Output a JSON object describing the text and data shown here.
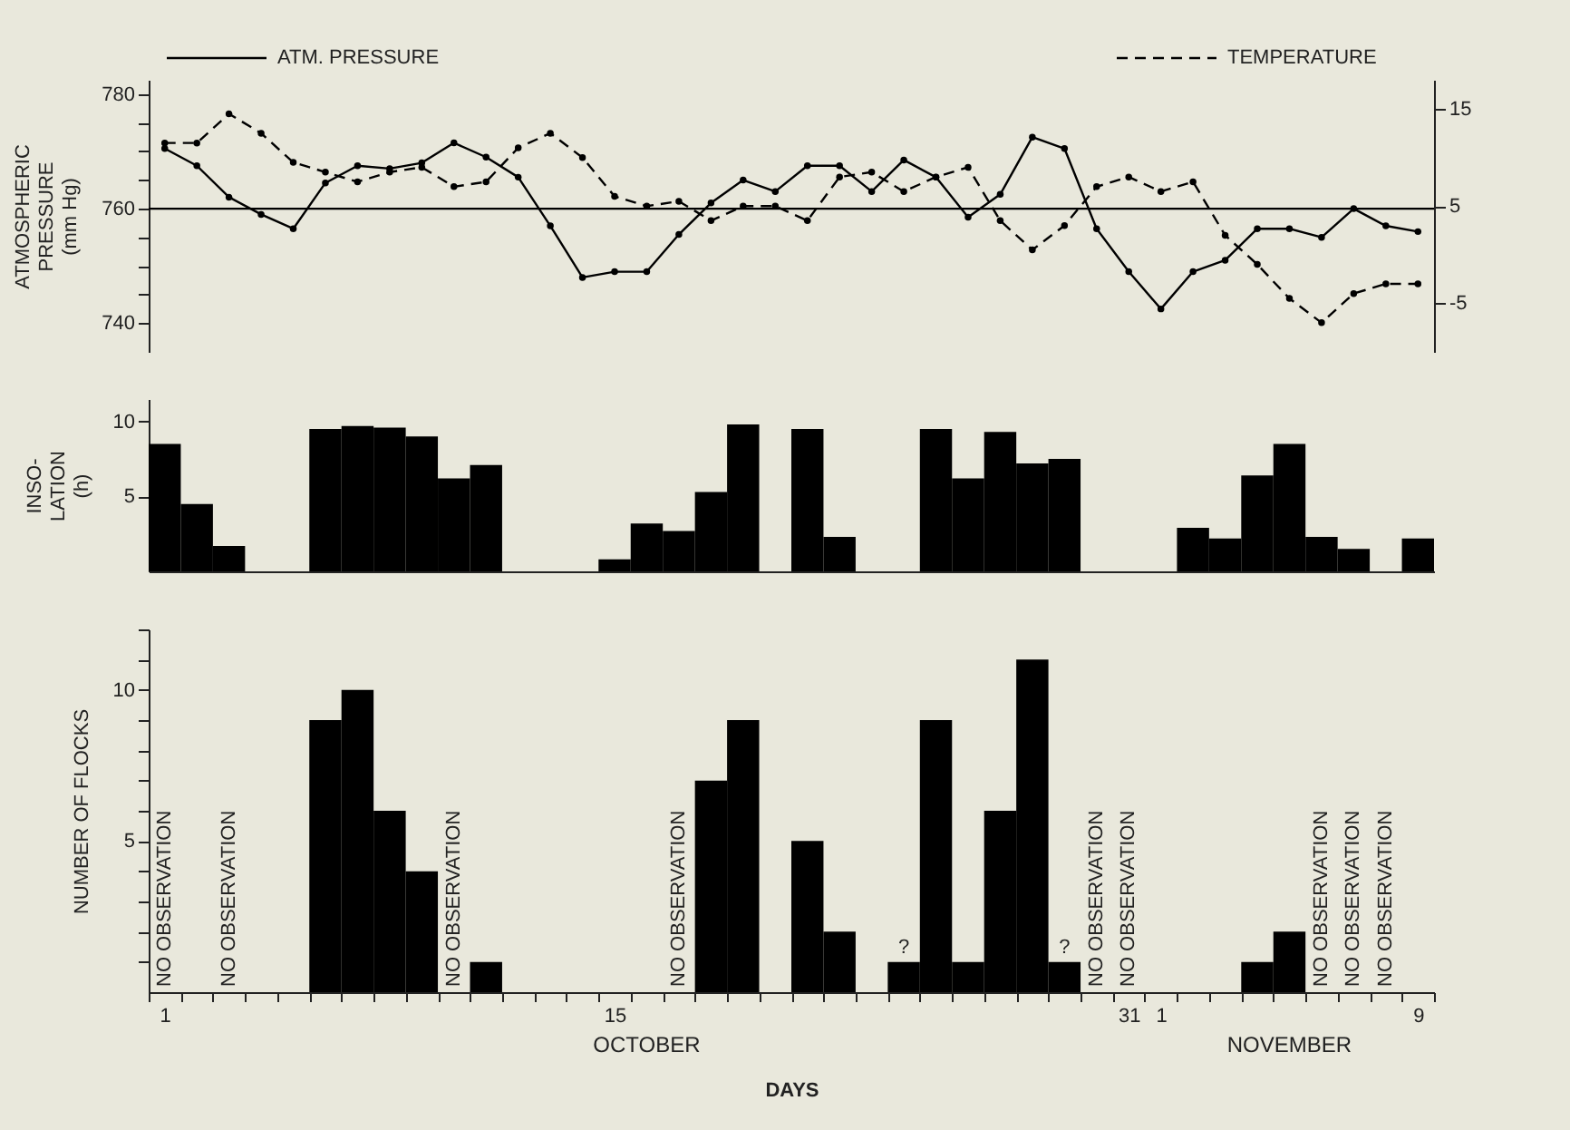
{
  "chart_data": [
    {
      "type": "line",
      "ylabel": "ATMOSPHERIC\nPRESSURE\n(mm Hg)",
      "legend": "top",
      "marker": "circle",
      "tick_labels": "y",
      "categories": [
        "1",
        null,
        null,
        null,
        null,
        null,
        null,
        null,
        null,
        null,
        null,
        null,
        null,
        null,
        "15",
        null,
        null,
        null,
        null,
        null,
        null,
        null,
        null,
        null,
        null,
        null,
        null,
        null,
        null,
        null,
        "31",
        "1",
        null,
        null,
        null,
        null,
        null,
        null,
        null,
        "9"
      ],
      "ylim": [
        735,
        782.5
      ],
      "yticks": [
        {
          "value": 740,
          "label": "740"
        },
        {
          "value": 745,
          "label": null
        },
        {
          "value": 750,
          "label": null
        },
        {
          "value": 755,
          "label": null
        },
        {
          "value": 760,
          "label": "760"
        },
        {
          "value": 765,
          "label": null
        },
        {
          "value": 770,
          "label": null
        },
        {
          "value": 775,
          "label": null
        },
        {
          "value": 780,
          "label": "780"
        }
      ],
      "y2lim": [
        -10,
        18
      ],
      "y2ticks": [
        -5,
        5,
        15
      ],
      "ref_lines": [
        {
          "axis": "y",
          "value": 760,
          "color": "#000000"
        }
      ],
      "series": [
        {
          "name": "ATM. PRESSURE",
          "color": "#000000",
          "line_style": "solid",
          "values": [
            770.5,
            767.5,
            762,
            759,
            756.5,
            764.5,
            767.5,
            767,
            768,
            771.5,
            769,
            765.5,
            757,
            748,
            749,
            749,
            755.5,
            761,
            765,
            763,
            767.5,
            767.5,
            763,
            768.5,
            765.5,
            758.5,
            762.5,
            772.5,
            770.5,
            756.5,
            749,
            742.5,
            749,
            751,
            756.5,
            756.5,
            755,
            760,
            757,
            756
          ]
        },
        {
          "name": "TEMPERATURE",
          "color": "#000000",
          "line_style": "dashed",
          "axis": "y2",
          "values": [
            11.5,
            11.5,
            14.5,
            12.5,
            9.5,
            8.5,
            7.5,
            8.5,
            9,
            7,
            7.5,
            11,
            12.5,
            10,
            6,
            5,
            5.5,
            3.5,
            5,
            5,
            3.5,
            8,
            8.5,
            6.5,
            8,
            9,
            3.5,
            0.5,
            3,
            7,
            8,
            6.5,
            7.5,
            2,
            -1,
            -4.5,
            -7,
            -4,
            -3,
            -3
          ]
        }
      ]
    },
    {
      "type": "bar",
      "ylabel": "INSO-\nLATION\n(h)",
      "tick_labels": "y",
      "color": "#000000",
      "categories": [
        "1",
        null,
        null,
        null,
        null,
        null,
        null,
        null,
        null,
        null,
        null,
        null,
        null,
        null,
        "15",
        null,
        null,
        null,
        null,
        null,
        null,
        null,
        null,
        null,
        null,
        null,
        null,
        null,
        null,
        null,
        "31",
        "1",
        null,
        null,
        null,
        null,
        null,
        null,
        null,
        "9"
      ],
      "ylim": [
        0,
        11.5
      ],
      "yticks": [
        5,
        10
      ],
      "values": [
        8.5,
        4.5,
        1.7,
        0,
        0,
        9.5,
        9.7,
        9.6,
        9,
        6.2,
        7.1,
        0,
        0,
        0,
        0.8,
        3.2,
        2.7,
        5.3,
        9.8,
        0,
        9.5,
        2.3,
        0,
        0,
        9.5,
        6.2,
        9.3,
        7.2,
        7.5,
        0,
        0,
        0,
        2.9,
        2.2,
        6.4,
        8.5,
        2.3,
        1.5,
        0,
        2.2
      ]
    },
    {
      "type": "bar",
      "ylabel": "NUMBER  OF  FLOCKS",
      "xlabel": "DAYS",
      "color": "#000000",
      "categories": [
        "1",
        null,
        null,
        null,
        null,
        null,
        null,
        null,
        null,
        null,
        null,
        null,
        null,
        null,
        "15",
        null,
        null,
        null,
        null,
        null,
        null,
        null,
        null,
        null,
        null,
        null,
        null,
        null,
        null,
        null,
        "31",
        "1",
        null,
        null,
        null,
        null,
        null,
        null,
        null,
        "9"
      ],
      "ylim": [
        0,
        12
      ],
      "yticks": [
        {
          "value": 1,
          "label": null
        },
        {
          "value": 2,
          "label": null
        },
        {
          "value": 3,
          "label": null
        },
        {
          "value": 4,
          "label": null
        },
        {
          "value": 5,
          "label": "5"
        },
        {
          "value": 6,
          "label": null
        },
        {
          "value": 7,
          "label": null
        },
        {
          "value": 8,
          "label": null
        },
        {
          "value": 9,
          "label": null
        },
        {
          "value": 10,
          "label": "10"
        },
        {
          "value": 11,
          "label": null
        },
        {
          "value": 12,
          "label": null
        }
      ],
      "values": [
        null,
        0,
        null,
        0,
        0,
        9,
        10,
        6,
        4,
        null,
        1,
        0,
        0,
        0,
        0,
        0,
        null,
        7,
        9,
        0,
        5,
        2,
        0,
        1,
        9,
        1,
        6,
        11,
        1,
        null,
        null,
        0,
        0,
        0,
        1,
        2,
        null,
        null,
        null,
        0
      ],
      "value_labels": [
        "NO OBSERVATION",
        null,
        "NO OBSERVATION",
        null,
        null,
        null,
        null,
        null,
        null,
        "NO OBSERVATION",
        null,
        null,
        null,
        null,
        null,
        null,
        "NO OBSERVATION",
        null,
        null,
        null,
        null,
        null,
        null,
        "?",
        null,
        null,
        null,
        null,
        "?",
        "NO OBSERVATION",
        "NO OBSERVATION",
        null,
        null,
        null,
        null,
        null,
        "NO OBSERVATION",
        "NO OBSERVATION",
        "NO OBSERVATION",
        null
      ],
      "annotations": [
        "OCTOBER",
        "NOVEMBER"
      ]
    }
  ]
}
